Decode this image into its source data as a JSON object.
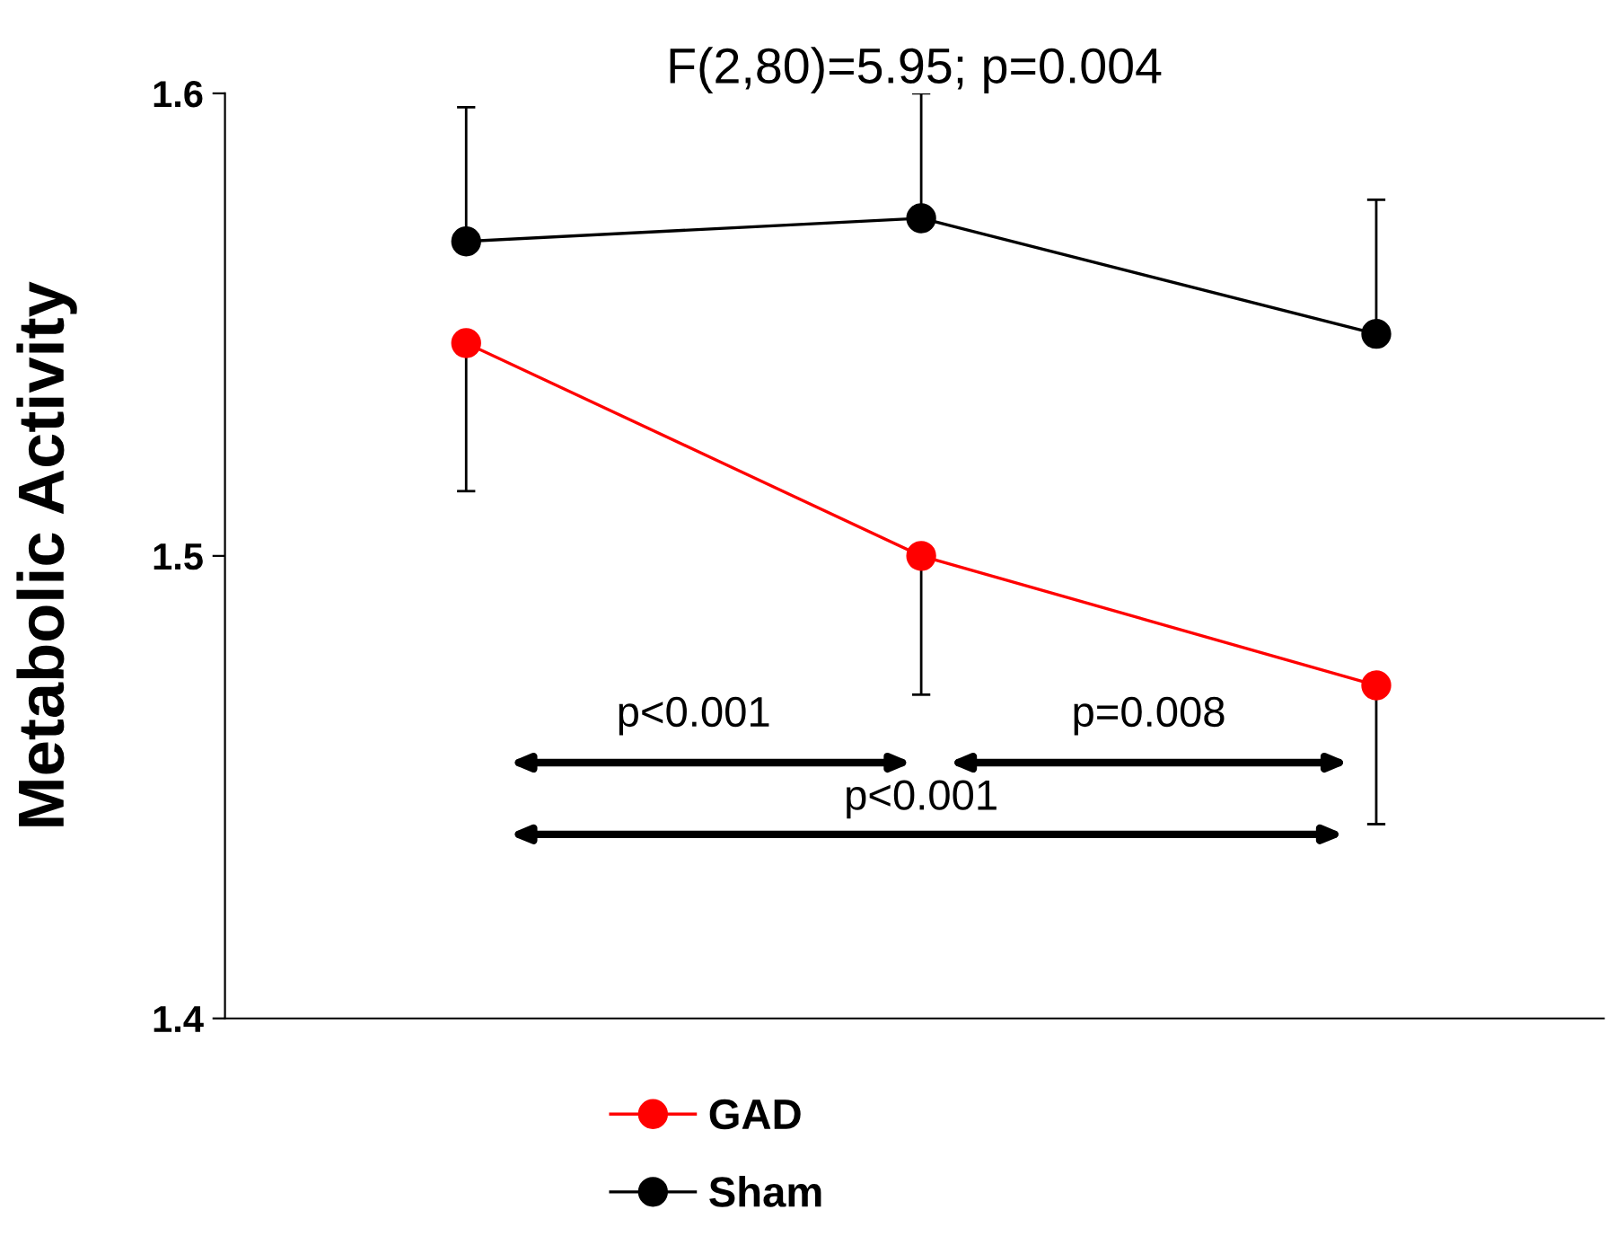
{
  "chart_data": {
    "type": "line",
    "title": "F(2,80)=5.95; p=0.004",
    "ylabel": "Metabolic Activity",
    "categories": [
      null,
      null,
      null
    ],
    "series": [
      {
        "name": "GAD",
        "color": "#ff0000",
        "values": [
          1.546,
          1.5,
          1.472
        ],
        "errors": [
          [
            1.514,
            1.546
          ],
          [
            1.47,
            1.5
          ],
          [
            1.442,
            1.472
          ]
        ]
      },
      {
        "name": "Sham",
        "color": "#000000",
        "values": [
          1.568,
          1.573,
          1.548
        ],
        "errors": [
          [
            1.568,
            1.597
          ],
          [
            1.573,
            1.6
          ],
          [
            1.548,
            1.577
          ]
        ]
      }
    ],
    "ylim": [
      1.4,
      1.6
    ],
    "yticks": [
      1.4,
      1.5,
      1.6
    ],
    "grid": false,
    "legend": "bottom",
    "marker": "circle",
    "line_style": "solid",
    "annotations": [
      "p<0.001",
      "p=0.008",
      "p<0.001"
    ]
  }
}
